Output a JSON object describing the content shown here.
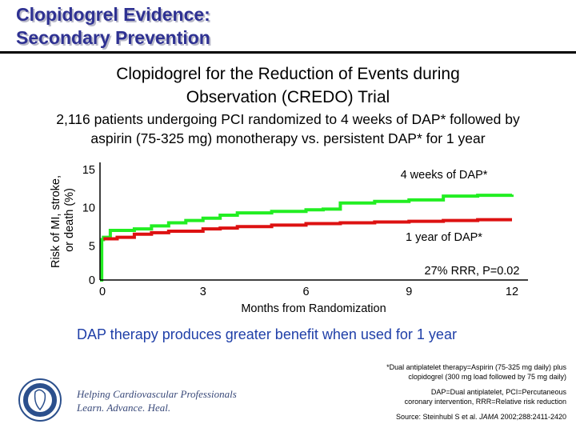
{
  "slide": {
    "title_line1": "Clopidogrel Evidence:",
    "title_line2": "Secondary Prevention",
    "subtitle_line1": "Clopidogrel for the Reduction of Events during",
    "subtitle_line2": "Observation (CREDO) Trial",
    "description_line1": "2,116 patients undergoing PCI randomized to 4 weeks of DAP* followed by",
    "description_line2": "aspirin (75-325 mg) monotherapy vs. persistent DAP* for 1 year",
    "takeaway": "DAP therapy produces greater benefit when used for 1 year",
    "footnote1_line1": "*Dual antiplatelet therapy=Aspirin (75-325 mg daily) plus",
    "footnote1_line2": "clopidogrel (300 mg load followed by 75 mg daily)",
    "footnote2_line1": "DAP=Dual antiplatelet, PCI=Percutaneous",
    "footnote2_line2": "coronary intervention, RRR=Relative risk reduction",
    "source_prefix": "Source: Steinhubl S et al. ",
    "source_journal": "JAMA",
    "source_suffix": " 2002;288:2411-2420",
    "tagline_line1": "Helping Cardiovascular Professionals",
    "tagline_line2": "Learn. Advance. Heal.",
    "logo_text": "American College of Cardiology"
  },
  "colors": {
    "title": "#2e3192",
    "takeaway": "#1f3fa8",
    "green": "#22ee22",
    "red": "#dd1111"
  },
  "chart_data": {
    "type": "line",
    "xlabel": "Months from Randomization",
    "ylabel_line1": "Risk of MI, stroke,",
    "ylabel_line2": "or death (%)",
    "xlim": [
      0,
      12
    ],
    "ylim": [
      0,
      15
    ],
    "xticks": [
      "0",
      "3",
      "6",
      "9",
      "12"
    ],
    "yticks": [
      "0",
      "5",
      "10",
      "15"
    ],
    "grid": false,
    "annotation": "27% RRR, P=0.02",
    "series": [
      {
        "name": "4 weeks of DAP*",
        "color": "#22ee22",
        "x": [
          0,
          0.05,
          0.1,
          0.3,
          1.0,
          1.5,
          2.0,
          2.5,
          3.0,
          3.5,
          4.0,
          5.0,
          6.0,
          6.5,
          7.0,
          8.0,
          9.0,
          10.0,
          11.0,
          12.0
        ],
        "y": [
          0,
          5.3,
          5.6,
          6.5,
          6.7,
          7.1,
          7.5,
          7.8,
          8.1,
          8.5,
          8.8,
          9.0,
          9.2,
          9.3,
          10.1,
          10.3,
          10.5,
          11.0,
          11.1,
          11.2
        ]
      },
      {
        "name": "1 year of DAP*",
        "color": "#dd1111",
        "x": [
          0.1,
          0.5,
          1.0,
          1.5,
          2.0,
          3.0,
          3.5,
          4.0,
          5.0,
          6.0,
          7.0,
          8.0,
          9.0,
          10.0,
          11.0,
          12.0
        ],
        "y": [
          5.4,
          5.6,
          6.0,
          6.2,
          6.4,
          6.7,
          6.8,
          7.0,
          7.2,
          7.4,
          7.5,
          7.6,
          7.7,
          7.8,
          7.9,
          7.9
        ]
      }
    ]
  }
}
